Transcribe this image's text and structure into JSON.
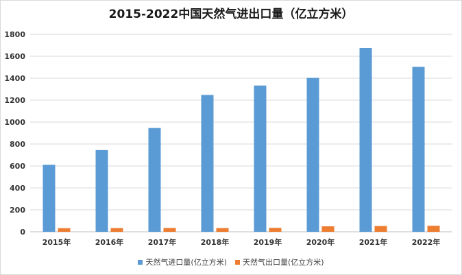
{
  "chart_data": {
    "type": "bar",
    "title": "2015-2022中国天然气进出口量（亿立方米）",
    "categories": [
      "2015年",
      "2016年",
      "2017年",
      "2018年",
      "2019年",
      "2020年",
      "2021年",
      "2022年"
    ],
    "series": [
      {
        "name": "天然气进口量(亿立方米)",
        "color": "#5b9bd5",
        "values": [
          611,
          745,
          946,
          1247,
          1333,
          1403,
          1675,
          1503
        ]
      },
      {
        "name": "天然气出口量(亿立方米)",
        "color": "#ed7d31",
        "values": [
          33,
          34,
          35,
          34,
          36,
          50,
          53,
          55
        ]
      }
    ],
    "ylim": [
      0,
      1800
    ],
    "yticks": [
      0,
      200,
      400,
      600,
      800,
      1000,
      1200,
      1400,
      1600,
      1800
    ],
    "grid": true,
    "legend_position": "bottom"
  }
}
